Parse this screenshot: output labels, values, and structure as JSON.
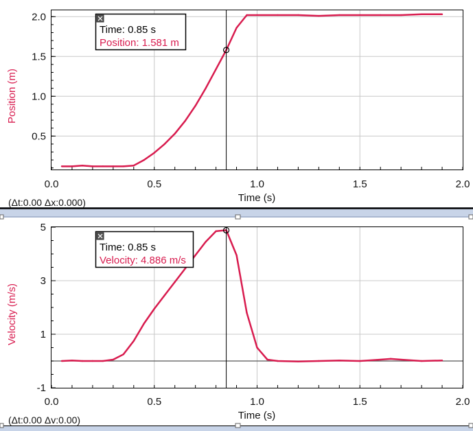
{
  "colors": {
    "series": "#d81b4e",
    "grid": "#c8c8c8",
    "axis": "#000000",
    "splitter": "#c8d4e8",
    "background": "#ffffff"
  },
  "chart_data": [
    {
      "type": "line",
      "xlabel": "Time (s)",
      "ylabel": "Position (m)",
      "xlim": [
        0,
        2.0
      ],
      "ylim": [
        0.08,
        2.08
      ],
      "x_ticks": [
        "0.0",
        "0.5",
        "1.0",
        "1.5",
        "2.0"
      ],
      "y_ticks": [
        "0.5",
        "1.0",
        "1.5",
        "2.0"
      ],
      "grid": true,
      "series": [
        {
          "x": [
            0.05,
            0.1,
            0.15,
            0.2,
            0.25,
            0.3,
            0.35,
            0.4,
            0.45,
            0.5,
            0.55,
            0.6,
            0.65,
            0.7,
            0.75,
            0.8,
            0.85,
            0.9,
            0.95,
            1.0,
            1.1,
            1.2,
            1.3,
            1.4,
            1.5,
            1.6,
            1.7,
            1.8,
            1.9
          ],
          "y": [
            0.12,
            0.12,
            0.13,
            0.12,
            0.12,
            0.12,
            0.12,
            0.13,
            0.2,
            0.29,
            0.4,
            0.53,
            0.69,
            0.88,
            1.1,
            1.34,
            1.581,
            1.86,
            2.02,
            2.02,
            2.02,
            2.02,
            2.01,
            2.02,
            2.02,
            2.02,
            2.02,
            2.03,
            2.03
          ]
        }
      ],
      "cursor": {
        "time_label": "Time: 0.85 s",
        "value_label": "Position: 1.581 m",
        "x": 0.85,
        "y": 1.581
      },
      "delta_label": "(Δt:0.00 Δx:0.000)"
    },
    {
      "type": "line",
      "xlabel": "Time (s)",
      "ylabel": "Velocity (m/s)",
      "xlim": [
        0,
        2.0
      ],
      "ylim": [
        -1.0,
        5.0
      ],
      "x_ticks": [
        "0.0",
        "0.5",
        "1.0",
        "1.5",
        "2.0"
      ],
      "y_ticks": [
        "-1",
        "1",
        "3",
        "5"
      ],
      "grid": true,
      "series": [
        {
          "x": [
            0.05,
            0.1,
            0.15,
            0.2,
            0.25,
            0.3,
            0.35,
            0.4,
            0.45,
            0.5,
            0.55,
            0.6,
            0.65,
            0.7,
            0.75,
            0.8,
            0.85,
            0.9,
            0.95,
            1.0,
            1.05,
            1.1,
            1.2,
            1.3,
            1.4,
            1.5,
            1.6,
            1.65,
            1.7,
            1.8,
            1.9
          ],
          "y": [
            0.0,
            0.02,
            0.0,
            0.0,
            0.0,
            0.05,
            0.25,
            0.75,
            1.4,
            1.95,
            2.45,
            2.95,
            3.45,
            3.95,
            4.45,
            4.85,
            4.886,
            3.95,
            1.8,
            0.5,
            0.05,
            0.0,
            -0.02,
            0.0,
            0.02,
            0.0,
            0.05,
            0.08,
            0.05,
            0.0,
            0.02
          ]
        }
      ],
      "cursor": {
        "time_label": "Time: 0.85 s",
        "value_label": "Velocity: 4.886 m/s",
        "x": 0.85,
        "y": 4.886
      },
      "delta_label": "(Δt:0.00 Δv:0.00)"
    }
  ]
}
